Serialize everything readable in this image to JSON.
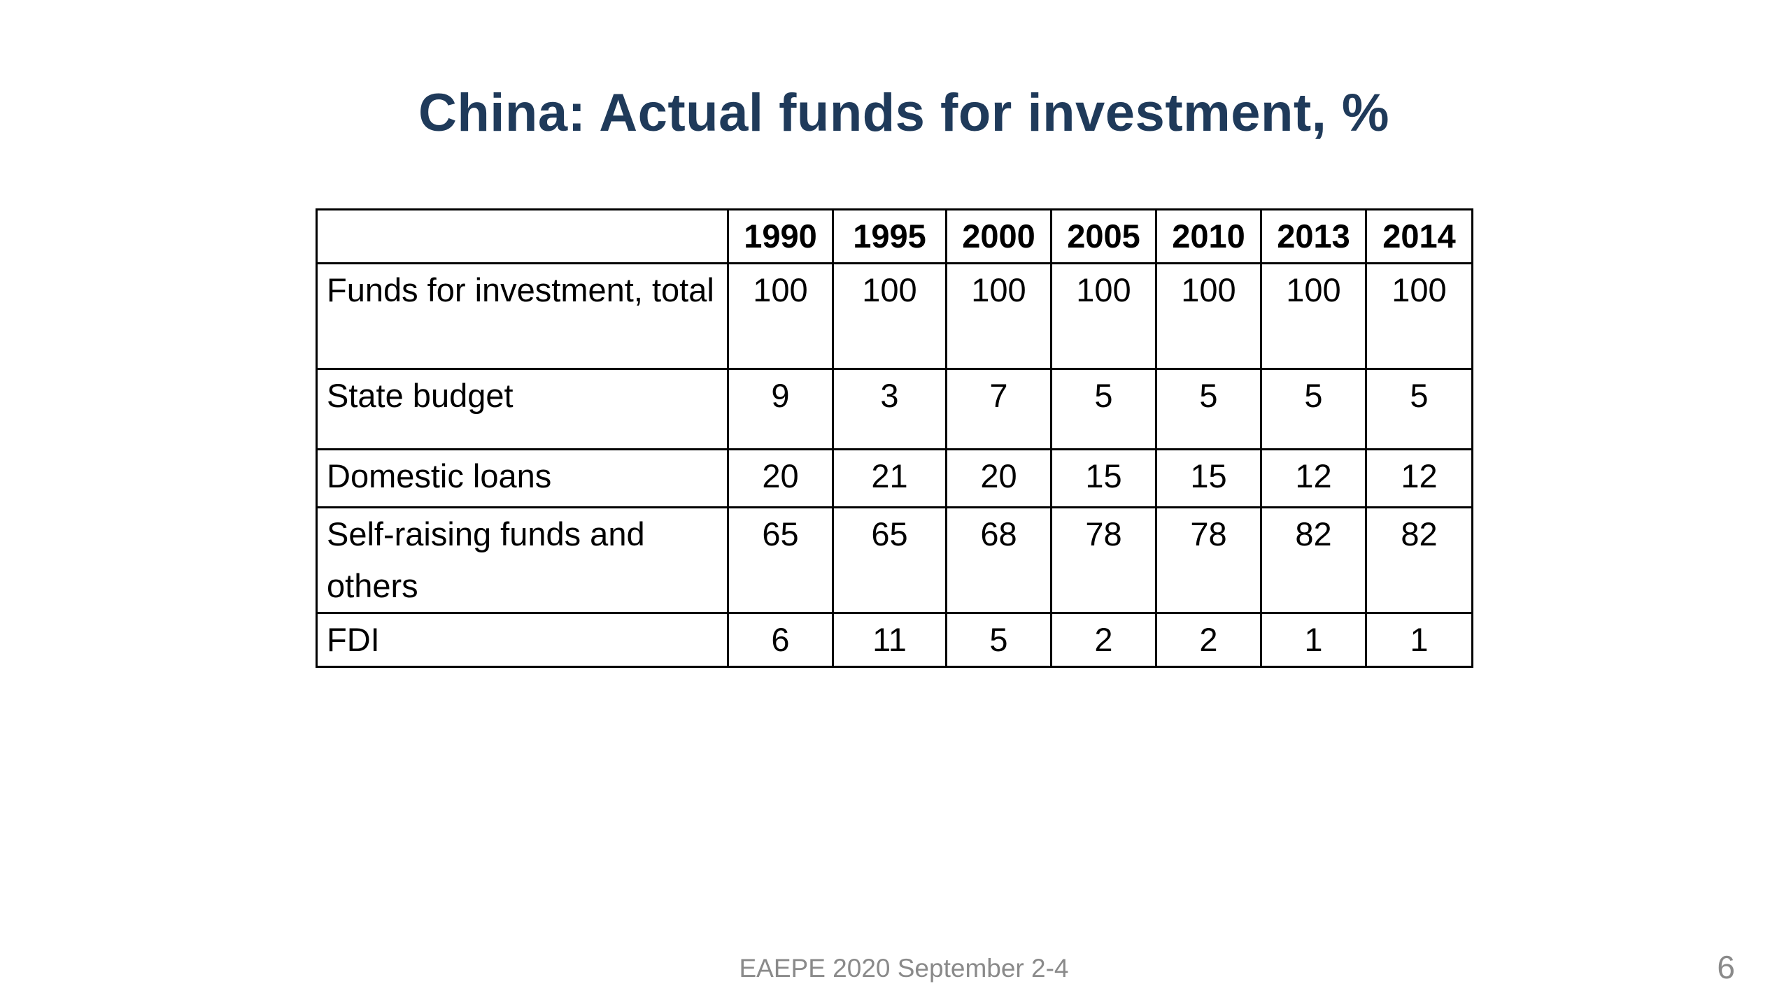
{
  "slide": {
    "title": "China: Actual funds for investment, %",
    "footer": "EAEPE 2020 September 2-4",
    "page_number": "6"
  },
  "table": {
    "corner": "",
    "years": [
      "1990",
      "1995",
      "2000",
      "2005",
      "2010",
      "2013",
      "2014"
    ],
    "rows": [
      {
        "label": "Funds for investment, total",
        "values": [
          "100",
          "100",
          "100",
          "100",
          "100",
          "100",
          "100"
        ]
      },
      {
        "label": "State budget",
        "values": [
          "9",
          "3",
          "7",
          "5",
          "5",
          "5",
          "5"
        ]
      },
      {
        "label": "Domestic loans",
        "values": [
          "20",
          "21",
          "20",
          "15",
          "15",
          "12",
          "12"
        ]
      },
      {
        "label": "Self-raising funds and others",
        "values": [
          "65",
          "65",
          "68",
          "78",
          "78",
          "82",
          "82"
        ]
      },
      {
        "label": "FDI",
        "values": [
          "6",
          "11",
          "5",
          "2",
          "2",
          "1",
          "1"
        ]
      }
    ]
  }
}
